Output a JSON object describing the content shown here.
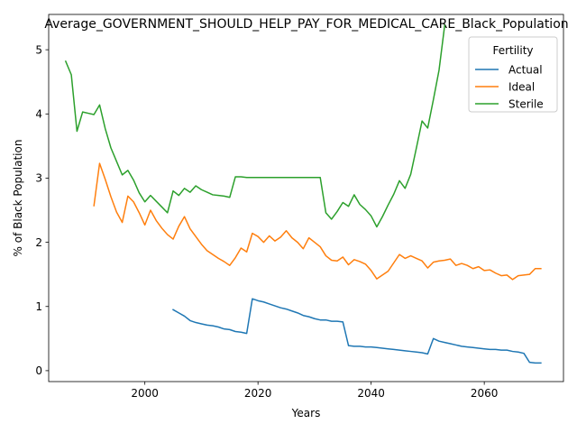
{
  "chart_data": {
    "type": "line",
    "title": "Average_GOVERNMENT_SHOULD_HELP_PAY_FOR_MEDICAL_CARE_Black_Population",
    "xlabel": "Years",
    "ylabel": "% of Black Population",
    "xlim": [
      1983,
      2074
    ],
    "ylim": [
      -0.17,
      5.55
    ],
    "xticks": [
      2000,
      2020,
      2040,
      2060
    ],
    "yticks": [
      0,
      1,
      2,
      3,
      4,
      5
    ],
    "grid": false,
    "legend": {
      "title": "Fertility",
      "position": "top-right"
    },
    "series": [
      {
        "name": "Actual",
        "color": "#1f77b4",
        "points": [
          [
            2005,
            0.95
          ],
          [
            2006,
            0.9
          ],
          [
            2007,
            0.85
          ],
          [
            2008,
            0.78
          ],
          [
            2009,
            0.75
          ],
          [
            2010,
            0.73
          ],
          [
            2011,
            0.71
          ],
          [
            2012,
            0.7
          ],
          [
            2013,
            0.68
          ],
          [
            2014,
            0.65
          ],
          [
            2015,
            0.64
          ],
          [
            2016,
            0.61
          ],
          [
            2017,
            0.6
          ],
          [
            2018,
            0.58
          ],
          [
            2019,
            1.12
          ],
          [
            2020,
            1.09
          ],
          [
            2021,
            1.07
          ],
          [
            2022,
            1.04
          ],
          [
            2023,
            1.01
          ],
          [
            2024,
            0.98
          ],
          [
            2025,
            0.96
          ],
          [
            2026,
            0.93
          ],
          [
            2027,
            0.9
          ],
          [
            2028,
            0.86
          ],
          [
            2029,
            0.84
          ],
          [
            2030,
            0.81
          ],
          [
            2031,
            0.79
          ],
          [
            2032,
            0.79
          ],
          [
            2033,
            0.77
          ],
          [
            2034,
            0.77
          ],
          [
            2035,
            0.76
          ],
          [
            2036,
            0.39
          ],
          [
            2037,
            0.38
          ],
          [
            2038,
            0.38
          ],
          [
            2039,
            0.37
          ],
          [
            2040,
            0.37
          ],
          [
            2041,
            0.36
          ],
          [
            2042,
            0.35
          ],
          [
            2043,
            0.34
          ],
          [
            2044,
            0.33
          ],
          [
            2045,
            0.32
          ],
          [
            2046,
            0.31
          ],
          [
            2047,
            0.3
          ],
          [
            2048,
            0.29
          ],
          [
            2049,
            0.28
          ],
          [
            2050,
            0.26
          ],
          [
            2051,
            0.5
          ],
          [
            2052,
            0.46
          ],
          [
            2053,
            0.44
          ],
          [
            2054,
            0.42
          ],
          [
            2055,
            0.4
          ],
          [
            2056,
            0.38
          ],
          [
            2057,
            0.37
          ],
          [
            2058,
            0.36
          ],
          [
            2059,
            0.35
          ],
          [
            2060,
            0.34
          ],
          [
            2061,
            0.33
          ],
          [
            2062,
            0.33
          ],
          [
            2063,
            0.32
          ],
          [
            2064,
            0.32
          ],
          [
            2065,
            0.3
          ],
          [
            2066,
            0.29
          ],
          [
            2067,
            0.27
          ],
          [
            2068,
            0.13
          ],
          [
            2069,
            0.12
          ],
          [
            2070,
            0.12
          ]
        ]
      },
      {
        "name": "Ideal",
        "color": "#ff7f0e",
        "points": [
          [
            1991,
            2.57
          ],
          [
            1992,
            3.23
          ],
          [
            1993,
            2.98
          ],
          [
            1994,
            2.71
          ],
          [
            1995,
            2.47
          ],
          [
            1996,
            2.31
          ],
          [
            1997,
            2.72
          ],
          [
            1998,
            2.63
          ],
          [
            1999,
            2.46
          ],
          [
            2000,
            2.27
          ],
          [
            2001,
            2.5
          ],
          [
            2002,
            2.34
          ],
          [
            2003,
            2.22
          ],
          [
            2004,
            2.12
          ],
          [
            2005,
            2.05
          ],
          [
            2006,
            2.25
          ],
          [
            2007,
            2.4
          ],
          [
            2008,
            2.21
          ],
          [
            2009,
            2.09
          ],
          [
            2010,
            1.97
          ],
          [
            2011,
            1.87
          ],
          [
            2012,
            1.81
          ],
          [
            2013,
            1.75
          ],
          [
            2014,
            1.7
          ],
          [
            2015,
            1.64
          ],
          [
            2016,
            1.76
          ],
          [
            2017,
            1.91
          ],
          [
            2018,
            1.85
          ],
          [
            2019,
            2.14
          ],
          [
            2020,
            2.09
          ],
          [
            2021,
            2.0
          ],
          [
            2022,
            2.1
          ],
          [
            2023,
            2.02
          ],
          [
            2024,
            2.08
          ],
          [
            2025,
            2.18
          ],
          [
            2026,
            2.07
          ],
          [
            2027,
            2.0
          ],
          [
            2028,
            1.9
          ],
          [
            2029,
            2.07
          ],
          [
            2030,
            2.0
          ],
          [
            2031,
            1.93
          ],
          [
            2032,
            1.79
          ],
          [
            2033,
            1.72
          ],
          [
            2034,
            1.71
          ],
          [
            2035,
            1.77
          ],
          [
            2036,
            1.65
          ],
          [
            2037,
            1.73
          ],
          [
            2038,
            1.7
          ],
          [
            2039,
            1.66
          ],
          [
            2040,
            1.56
          ],
          [
            2041,
            1.43
          ],
          [
            2042,
            1.49
          ],
          [
            2043,
            1.55
          ],
          [
            2044,
            1.68
          ],
          [
            2045,
            1.81
          ],
          [
            2046,
            1.75
          ],
          [
            2047,
            1.79
          ],
          [
            2048,
            1.75
          ],
          [
            2049,
            1.71
          ],
          [
            2050,
            1.6
          ],
          [
            2051,
            1.69
          ],
          [
            2052,
            1.71
          ],
          [
            2053,
            1.72
          ],
          [
            2054,
            1.74
          ],
          [
            2055,
            1.64
          ],
          [
            2056,
            1.67
          ],
          [
            2057,
            1.64
          ],
          [
            2058,
            1.59
          ],
          [
            2059,
            1.62
          ],
          [
            2060,
            1.56
          ],
          [
            2061,
            1.57
          ],
          [
            2062,
            1.52
          ],
          [
            2063,
            1.48
          ],
          [
            2064,
            1.49
          ],
          [
            2065,
            1.42
          ],
          [
            2066,
            1.48
          ],
          [
            2067,
            1.49
          ],
          [
            2068,
            1.5
          ],
          [
            2069,
            1.59
          ],
          [
            2070,
            1.59
          ]
        ]
      },
      {
        "name": "Sterile",
        "color": "#2ca02c",
        "points": [
          [
            1986,
            4.82
          ],
          [
            1987,
            4.61
          ],
          [
            1988,
            3.73
          ],
          [
            1989,
            4.03
          ],
          [
            1990,
            4.01
          ],
          [
            1991,
            3.99
          ],
          [
            1992,
            4.14
          ],
          [
            1993,
            3.77
          ],
          [
            1994,
            3.47
          ],
          [
            1995,
            3.26
          ],
          [
            1996,
            3.05
          ],
          [
            1997,
            3.12
          ],
          [
            1998,
            2.97
          ],
          [
            1999,
            2.77
          ],
          [
            2000,
            2.63
          ],
          [
            2001,
            2.73
          ],
          [
            2002,
            2.64
          ],
          [
            2003,
            2.55
          ],
          [
            2004,
            2.46
          ],
          [
            2005,
            2.8
          ],
          [
            2006,
            2.73
          ],
          [
            2007,
            2.84
          ],
          [
            2008,
            2.78
          ],
          [
            2009,
            2.88
          ],
          [
            2010,
            2.82
          ],
          [
            2011,
            2.78
          ],
          [
            2012,
            2.74
          ],
          [
            2013,
            2.73
          ],
          [
            2014,
            2.72
          ],
          [
            2015,
            2.7
          ],
          [
            2016,
            3.02
          ],
          [
            2017,
            3.02
          ],
          [
            2018,
            3.01
          ],
          [
            2019,
            3.01
          ],
          [
            2020,
            3.01
          ],
          [
            2021,
            3.01
          ],
          [
            2022,
            3.01
          ],
          [
            2023,
            3.01
          ],
          [
            2024,
            3.01
          ],
          [
            2025,
            3.01
          ],
          [
            2026,
            3.01
          ],
          [
            2027,
            3.01
          ],
          [
            2028,
            3.01
          ],
          [
            2029,
            3.01
          ],
          [
            2030,
            3.01
          ],
          [
            2031,
            3.01
          ],
          [
            2032,
            2.46
          ],
          [
            2033,
            2.36
          ],
          [
            2034,
            2.48
          ],
          [
            2035,
            2.62
          ],
          [
            2036,
            2.56
          ],
          [
            2037,
            2.74
          ],
          [
            2038,
            2.59
          ],
          [
            2039,
            2.51
          ],
          [
            2040,
            2.41
          ],
          [
            2041,
            2.24
          ],
          [
            2042,
            2.4
          ],
          [
            2043,
            2.58
          ],
          [
            2044,
            2.75
          ],
          [
            2045,
            2.96
          ],
          [
            2046,
            2.84
          ],
          [
            2047,
            3.06
          ],
          [
            2048,
            3.47
          ],
          [
            2049,
            3.89
          ],
          [
            2050,
            3.78
          ],
          [
            2051,
            4.22
          ],
          [
            2052,
            4.68
          ],
          [
            2053,
            5.38
          ]
        ]
      }
    ]
  }
}
